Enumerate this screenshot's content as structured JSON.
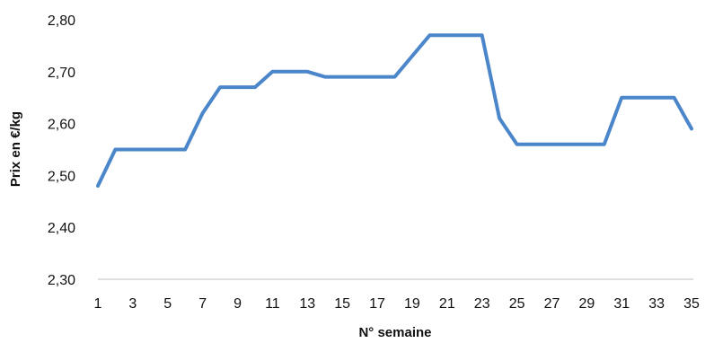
{
  "chart_data": {
    "type": "line",
    "title": "",
    "xlabel": "N° semaine",
    "ylabel": "Prix en €/kg",
    "x": [
      1,
      2,
      3,
      4,
      5,
      6,
      7,
      8,
      9,
      10,
      11,
      12,
      13,
      14,
      15,
      16,
      17,
      18,
      19,
      20,
      21,
      22,
      23,
      24,
      25,
      26,
      27,
      28,
      29,
      30,
      31,
      32,
      33,
      34,
      35
    ],
    "series": [
      {
        "color": "#4a86c9",
        "values": [
          2.48,
          2.55,
          2.55,
          2.55,
          2.55,
          2.55,
          2.62,
          2.67,
          2.67,
          2.67,
          2.7,
          2.7,
          2.7,
          2.69,
          2.69,
          2.69,
          2.69,
          2.69,
          2.73,
          2.77,
          2.77,
          2.77,
          2.77,
          2.61,
          2.56,
          2.56,
          2.56,
          2.56,
          2.56,
          2.56,
          2.65,
          2.65,
          2.65,
          2.65,
          2.59
        ]
      }
    ],
    "xticks": [
      "1",
      "3",
      "5",
      "7",
      "9",
      "11",
      "13",
      "15",
      "17",
      "19",
      "21",
      "23",
      "25",
      "27",
      "29",
      "31",
      "33",
      "35"
    ],
    "xlim": [
      1,
      35
    ],
    "yticks": [
      "2,30",
      "2,40",
      "2,50",
      "2,60",
      "2,70",
      "2,80"
    ],
    "ytick_values": [
      2.3,
      2.4,
      2.5,
      2.6,
      2.7,
      2.8
    ],
    "ylim": [
      2.3,
      2.8
    ],
    "grid": false,
    "legend": "none"
  }
}
